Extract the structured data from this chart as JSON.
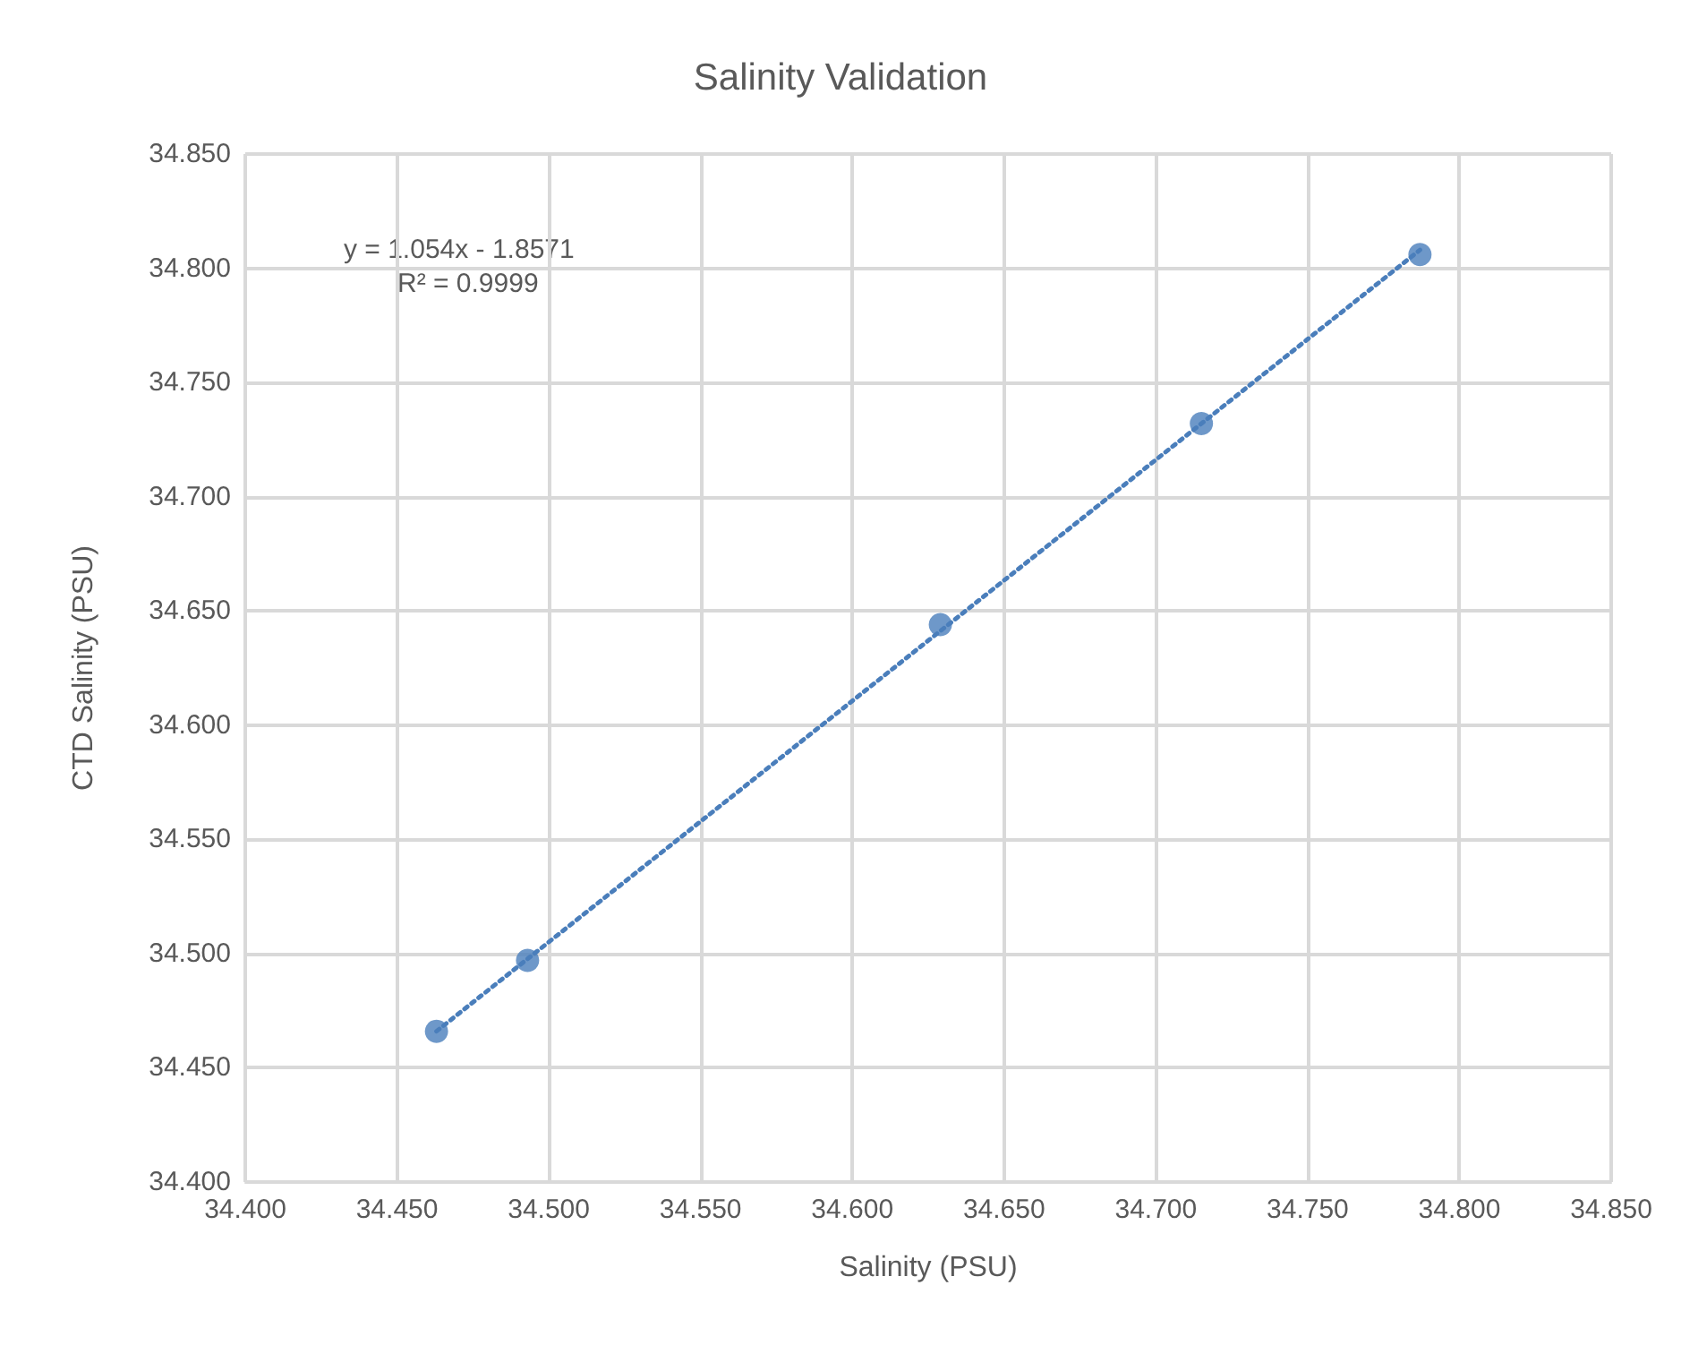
{
  "chart_data": {
    "type": "scatter",
    "title": "Salinity Validation",
    "xlabel": "Salinity (PSU)",
    "ylabel": "CTD Salinity (PSU)",
    "annotations": [
      "y = 1.054x - 1.8571",
      "R² = 0.9999"
    ],
    "series": [
      {
        "color": "#4a7ebb",
        "marker": "circle",
        "x": [
          34.463,
          34.493,
          34.629,
          34.715,
          34.787
        ],
        "values": [
          34.466,
          34.497,
          34.644,
          34.732,
          34.806
        ]
      },
      {
        "type": "line",
        "color": "#4a7ebb",
        "line_style": "dotted",
        "marker": "none",
        "x": [
          34.463,
          34.787
        ],
        "values": [
          34.466,
          34.808
        ]
      }
    ],
    "xlim": [
      34.4,
      34.85
    ],
    "ylim": [
      34.4,
      34.85
    ],
    "xticks": [
      {
        "value": 34.4,
        "label": "34.400"
      },
      {
        "value": 34.45,
        "label": "34.450"
      },
      {
        "value": 34.5,
        "label": "34.500"
      },
      {
        "value": 34.55,
        "label": "34.550"
      },
      {
        "value": 34.6,
        "label": "34.600"
      },
      {
        "value": 34.65,
        "label": "34.650"
      },
      {
        "value": 34.7,
        "label": "34.700"
      },
      {
        "value": 34.75,
        "label": "34.750"
      },
      {
        "value": 34.8,
        "label": "34.800"
      },
      {
        "value": 34.85,
        "label": "34.850"
      }
    ],
    "yticks": [
      {
        "value": 34.4,
        "label": "34.400"
      },
      {
        "value": 34.45,
        "label": "34.450"
      },
      {
        "value": 34.5,
        "label": "34.500"
      },
      {
        "value": 34.55,
        "label": "34.550"
      },
      {
        "value": 34.6,
        "label": "34.600"
      },
      {
        "value": 34.65,
        "label": "34.650"
      },
      {
        "value": 34.7,
        "label": "34.700"
      },
      {
        "value": 34.75,
        "label": "34.750"
      },
      {
        "value": 34.8,
        "label": "34.800"
      },
      {
        "value": 34.85,
        "label": "34.850"
      }
    ],
    "grid": true
  }
}
